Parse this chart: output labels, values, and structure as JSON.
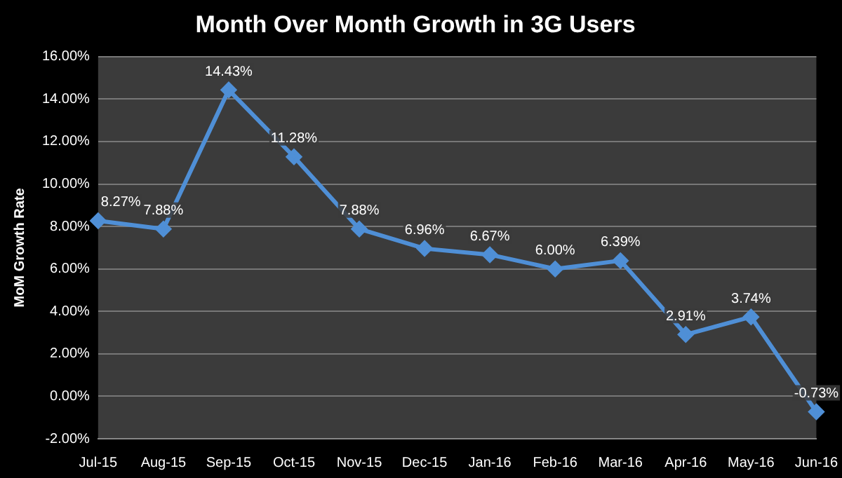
{
  "chart_data": {
    "type": "line",
    "title": "Month Over Month Growth in 3G Users",
    "ylabel": "MoM Growth Rate",
    "categories": [
      "Jul-15",
      "Aug-15",
      "Sep-15",
      "Oct-15",
      "Nov-15",
      "Dec-15",
      "Jan-16",
      "Feb-16",
      "Mar-16",
      "Apr-16",
      "May-16",
      "Jun-16"
    ],
    "series": [
      {
        "color": "#4f8fd6",
        "values": [
          8.27,
          7.88,
          14.43,
          11.28,
          7.88,
          6.96,
          6.67,
          6.0,
          6.39,
          2.91,
          3.74,
          -0.73
        ],
        "value_labels": [
          "8.27%",
          "7.88%",
          "14.43%",
          "11.28%",
          "7.88%",
          "6.96%",
          "6.67%",
          "6.00%",
          "6.39%",
          "2.91%",
          "3.74%",
          "-0.73%"
        ]
      }
    ],
    "ylim": [
      -2,
      16
    ],
    "yticks": [
      {
        "value": -2,
        "label": "-2.00%"
      },
      {
        "value": 0,
        "label": "0.00%"
      },
      {
        "value": 2,
        "label": "2.00%"
      },
      {
        "value": 4,
        "label": "4.00%"
      },
      {
        "value": 6,
        "label": "6.00%"
      },
      {
        "value": 8,
        "label": "8.00%"
      },
      {
        "value": 10,
        "label": "10.00%"
      },
      {
        "value": 12,
        "label": "12.00%"
      },
      {
        "value": 14,
        "label": "14.00%"
      },
      {
        "value": 16,
        "label": "16.00%"
      }
    ],
    "grid": "y",
    "marker": "diamond",
    "line_style": "solid",
    "legend": false
  }
}
